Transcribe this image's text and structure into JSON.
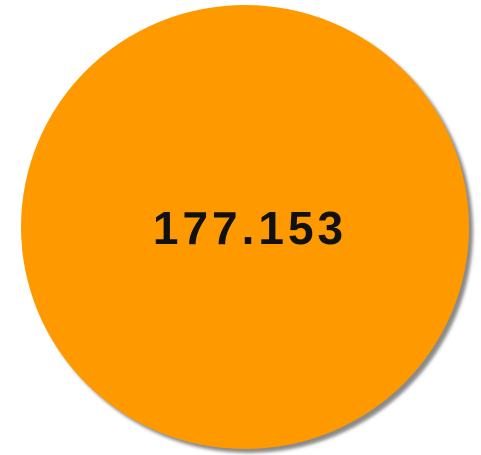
{
  "display": {
    "value": 177.153
  }
}
